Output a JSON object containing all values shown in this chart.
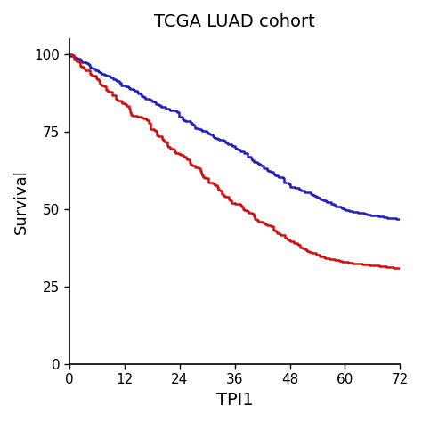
{
  "title": "TCGA LUAD cohort",
  "xlabel": "TPI1",
  "ylabel": "Survival",
  "xlim": [
    0,
    72
  ],
  "ylim": [
    0,
    105
  ],
  "xticks": [
    0,
    12,
    24,
    36,
    48,
    60,
    72
  ],
  "yticks": [
    0,
    25,
    50,
    75,
    100
  ],
  "blue_color": "#2222BB",
  "red_color": "#CC1111",
  "line_width": 1.8,
  "blue_waypoints_x": [
    0,
    3,
    6,
    9,
    12,
    15,
    18,
    21,
    24,
    27,
    30,
    33,
    36,
    39,
    42,
    45,
    48,
    51,
    54,
    57,
    60,
    63,
    66,
    69,
    72
  ],
  "blue_waypoints_y": [
    100,
    97.5,
    95,
    92.5,
    90,
    87.5,
    85,
    82.5,
    80,
    77.5,
    75,
    72.5,
    70,
    67,
    64,
    61,
    58,
    56,
    54,
    52,
    50,
    49,
    48,
    47.5,
    47
  ],
  "red_waypoints_x": [
    0,
    3,
    6,
    9,
    12,
    15,
    18,
    21,
    24,
    27,
    30,
    33,
    36,
    39,
    42,
    45,
    48,
    51,
    54,
    57,
    60,
    63,
    66,
    69,
    72
  ],
  "red_waypoints_y": [
    100,
    96,
    92,
    88,
    84,
    80,
    76,
    72,
    68,
    64,
    60,
    56,
    52,
    49,
    46,
    43,
    40,
    37.5,
    35.5,
    34,
    33,
    32.5,
    32,
    31.5,
    31
  ]
}
